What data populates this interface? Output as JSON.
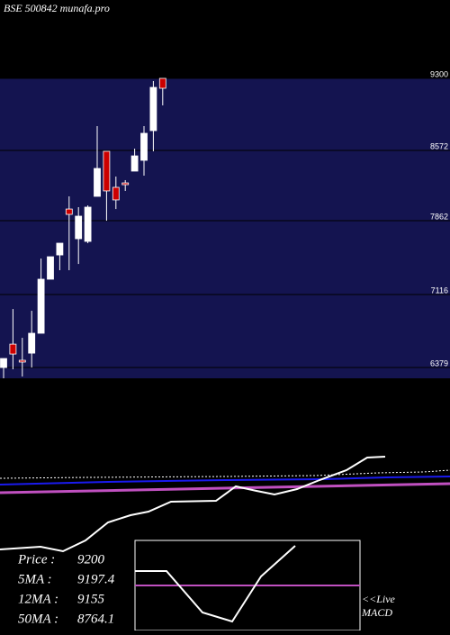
{
  "header": {
    "title": "BSE 500842 munafa.pro"
  },
  "chart_data": {
    "type": "candlestick",
    "open": [
      6379,
      6615,
      6452,
      6524,
      6725,
      7271,
      7516,
      7980,
      7680,
      7653,
      8108,
      8563,
      8199,
      8244,
      8363,
      8472,
      8772,
      9300
    ],
    "high": [
      6470,
      6970,
      6679,
      6952,
      7480,
      7498,
      7635,
      8108,
      7999,
      8017,
      8818,
      8563,
      8308,
      8272,
      8590,
      8818,
      9273,
      9300
    ],
    "low": [
      6270,
      6361,
      6288,
      6379,
      6725,
      7271,
      7362,
      7362,
      7425,
      7635,
      8108,
      7862,
      7980,
      8163,
      8363,
      8317,
      8563,
      9027
    ],
    "close": [
      6470,
      6515,
      6434,
      6725,
      7271,
      7498,
      7635,
      7926,
      7908,
      7999,
      8390,
      8163,
      8072,
      8226,
      8517,
      8745,
      9209,
      9200
    ],
    "up_color": "#ffffff",
    "down_color": "#cc0000",
    "ylim": [
      6270,
      9300
    ],
    "yticks": [
      9300,
      8572,
      7862,
      7116,
      6379
    ],
    "grid": true
  },
  "legend": [
    {
      "label": "Price :",
      "value": 9200
    },
    {
      "label": "5MA :",
      "value": 9197.4
    },
    {
      "label": "12MA :",
      "value": 9155
    },
    {
      "label": "50MA :",
      "value": 8764.1
    }
  ],
  "live_macd": [
    "<<Live",
    "MACD"
  ]
}
